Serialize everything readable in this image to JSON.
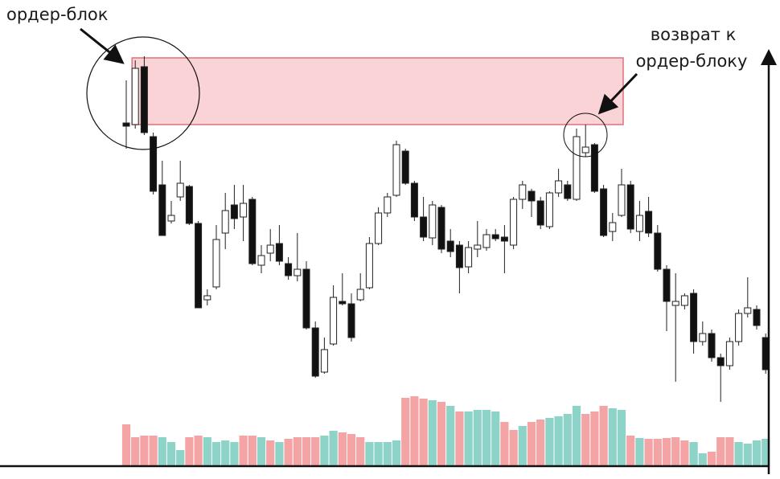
{
  "chart_data": {
    "type": "candlestick",
    "annotations": [
      "ордер-блок",
      "возврат к",
      "ордер-блоку"
    ],
    "ylim": [
      60,
      540
    ],
    "open": [
      447,
      445,
      517,
      430,
      370,
      325,
      355,
      368,
      322,
      227,
      243,
      310,
      345,
      330,
      352,
      270,
      285,
      297,
      272,
      257,
      265,
      192,
      137,
      172,
      225,
      222,
      227,
      242,
      297,
      335,
      357,
      412,
      372,
      330,
      304,
      342,
      300,
      295,
      268,
      290,
      292,
      308,
      305,
      295,
      352,
      362,
      350,
      318,
      360,
      370,
      352,
      410,
      420,
      365,
      312,
      332,
      370,
      312,
      337,
      310,
      265,
      220,
      220,
      235,
      175,
      185,
      155,
      145,
      175,
      210,
      215,
      180
    ],
    "high": [
      500,
      525,
      530,
      435,
      400,
      350,
      400,
      370,
      325,
      240,
      320,
      360,
      370,
      370,
      355,
      295,
      315,
      320,
      280,
      310,
      275,
      200,
      180,
      245,
      260,
      235,
      260,
      305,
      342,
      360,
      425,
      415,
      375,
      355,
      350,
      345,
      315,
      300,
      300,
      325,
      315,
      315,
      320,
      355,
      375,
      365,
      355,
      362,
      390,
      375,
      440,
      445,
      422,
      370,
      335,
      390,
      375,
      350,
      355,
      320,
      270,
      260,
      235,
      240,
      200,
      190,
      160,
      180,
      215,
      255,
      220,
      185
    ],
    "low": [
      415,
      440,
      432,
      358,
      307,
      322,
      350,
      320,
      217,
      220,
      240,
      290,
      315,
      300,
      270,
      260,
      275,
      270,
      252,
      250,
      190,
      130,
      135,
      170,
      220,
      175,
      225,
      240,
      295,
      330,
      355,
      370,
      325,
      300,
      295,
      285,
      280,
      235,
      260,
      280,
      288,
      300,
      260,
      290,
      340,
      330,
      315,
      315,
      355,
      350,
      350,
      405,
      360,
      305,
      300,
      330,
      310,
      300,
      305,
      262,
      188,
      125,
      215,
      160,
      170,
      150,
      100,
      140,
      170,
      205,
      190,
      135
    ],
    "close": [
      443,
      515,
      435,
      362,
      307,
      332,
      372,
      322,
      217,
      232,
      302,
      338,
      328,
      347,
      272,
      282,
      295,
      275,
      257,
      265,
      192,
      132,
      165,
      230,
      222,
      180,
      240,
      297,
      335,
      355,
      420,
      372,
      330,
      305,
      345,
      290,
      287,
      267,
      292,
      295,
      308,
      303,
      300,
      352,
      370,
      350,
      320,
      360,
      375,
      353,
      430,
      417,
      362,
      307,
      323,
      370,
      315,
      332,
      310,
      265,
      225,
      225,
      232,
      175,
      185,
      155,
      145,
      175,
      210,
      217,
      195,
      140
    ],
    "up_color": "#ffffff",
    "down_color": "#111111",
    "zone": {
      "top": 528,
      "bottom": 445,
      "color": "#f9d3d6",
      "edge_color": "#e0707c"
    },
    "volume": {
      "ylim": [
        0,
        100
      ],
      "values": [
        52,
        36,
        38,
        38,
        36,
        30,
        20,
        36,
        38,
        36,
        30,
        32,
        30,
        38,
        38,
        36,
        32,
        30,
        34,
        36,
        36,
        36,
        38,
        44,
        42,
        40,
        36,
        30,
        30,
        30,
        32,
        85,
        87,
        84,
        82,
        80,
        75,
        68,
        68,
        70,
        70,
        68,
        55,
        45,
        50,
        55,
        58,
        60,
        62,
        65,
        75,
        65,
        68,
        75,
        72,
        70,
        38,
        35,
        34,
        34,
        35,
        36,
        32,
        30,
        16,
        18,
        36,
        36,
        30,
        28,
        32,
        34
      ],
      "colors": [
        "#f4a4a4",
        "#f4a4a4",
        "#f4a4a4",
        "#f4a4a4",
        "#8dd3c8",
        "#8dd3c8",
        "#8dd3c8",
        "#f4a4a4",
        "#f4a4a4",
        "#8dd3c8",
        "#8dd3c8",
        "#8dd3c8",
        "#8dd3c8",
        "#f4a4a4",
        "#f4a4a4",
        "#8dd3c8",
        "#f4a4a4",
        "#8dd3c8",
        "#f4a4a4",
        "#f4a4a4",
        "#f4a4a4",
        "#f4a4a4",
        "#8dd3c8",
        "#8dd3c8",
        "#f4a4a4",
        "#f4a4a4",
        "#f4a4a4",
        "#8dd3c8",
        "#8dd3c8",
        "#8dd3c8",
        "#8dd3c8",
        "#f4a4a4",
        "#f4a4a4",
        "#f4a4a4",
        "#8dd3c8",
        "#f4a4a4",
        "#8dd3c8",
        "#f4a4a4",
        "#8dd3c8",
        "#8dd3c8",
        "#8dd3c8",
        "#8dd3c8",
        "#f4a4a4",
        "#f4a4a4",
        "#8dd3c8",
        "#f4a4a4",
        "#f4a4a4",
        "#8dd3c8",
        "#8dd3c8",
        "#8dd3c8",
        "#8dd3c8",
        "#f4a4a4",
        "#f4a4a4",
        "#f4a4a4",
        "#8dd3c8",
        "#8dd3c8",
        "#f4a4a4",
        "#8dd3c8",
        "#f4a4a4",
        "#f4a4a4",
        "#f4a4a4",
        "#f4a4a4",
        "#f4a4a4",
        "#8dd3c8",
        "#8dd3c8",
        "#f4a4a4",
        "#f4a4a4",
        "#f4a4a4",
        "#8dd3c8",
        "#8dd3c8",
        "#8dd3c8",
        "#8dd3c8"
      ]
    }
  }
}
